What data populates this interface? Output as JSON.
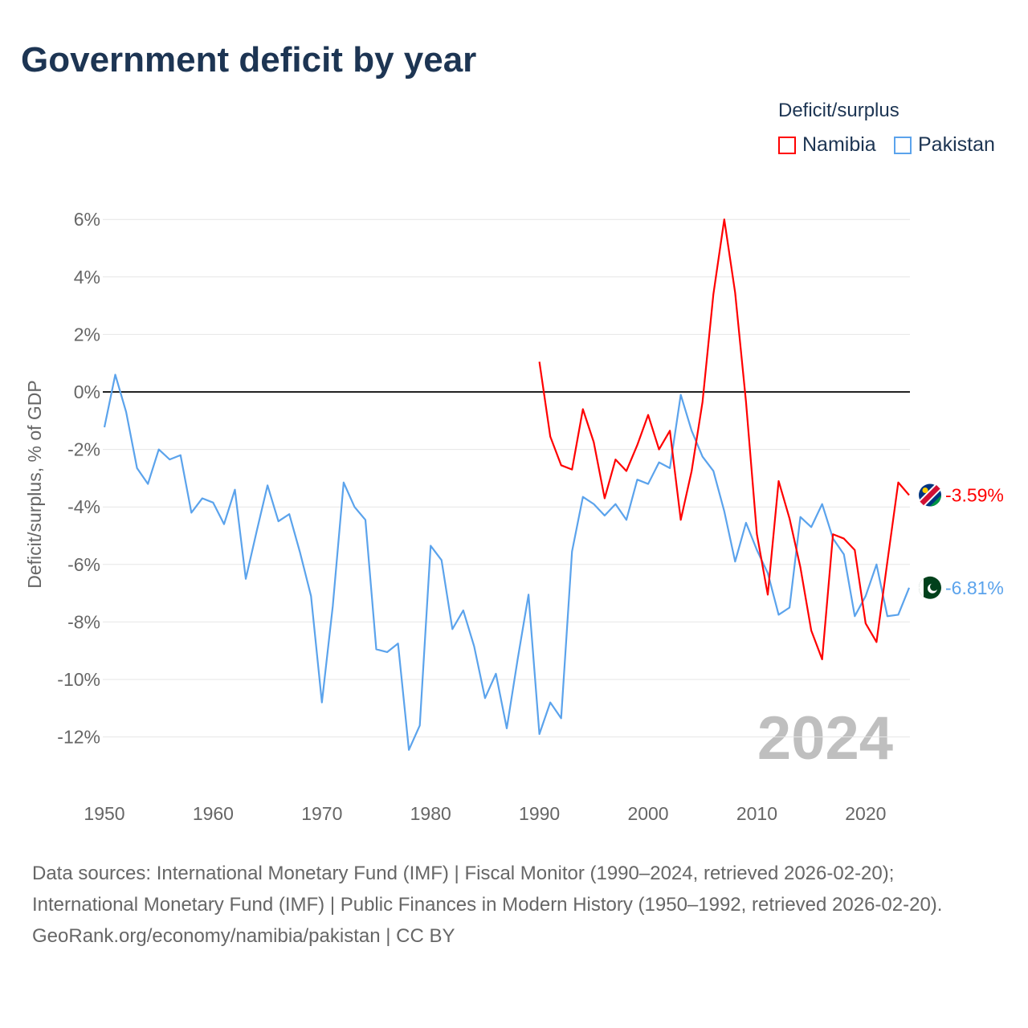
{
  "chart_data": {
    "type": "line",
    "title": "Government deficit by year",
    "xlabel": "",
    "ylabel": "Deficit/surplus, % of GDP",
    "xlim": [
      1950,
      2024
    ],
    "ylim": [
      -12,
      6
    ],
    "x_ticks": [
      "1950",
      "1960",
      "1970",
      "1980",
      "1990",
      "2000",
      "2010",
      "2020"
    ],
    "y_ticks": [
      "6%",
      "4%",
      "2%",
      "0%",
      "-2%",
      "-4%",
      "-6%",
      "-8%",
      "-10%",
      "-12%"
    ],
    "grid": true,
    "legend_title": "Deficit/surplus",
    "legend_position": "top-right",
    "year_annotation": "2024",
    "series": [
      {
        "name": "Namibia",
        "color": "#ff0000",
        "end_label": "-3.59%",
        "start_year": 1990,
        "values": [
          1.05,
          -1.55,
          -2.55,
          -2.7,
          -0.6,
          -1.75,
          -3.7,
          -2.35,
          -2.75,
          -1.85,
          -0.8,
          -2.0,
          -1.35,
          -4.45,
          -2.75,
          -0.35,
          3.4,
          6.0,
          3.45,
          -0.35,
          -4.95,
          -7.05,
          -3.1,
          -4.4,
          -6.1,
          -8.3,
          -9.3,
          -4.95,
          -5.1,
          -5.5,
          -8.05,
          -8.7,
          -5.9,
          -3.15,
          -3.59
        ]
      },
      {
        "name": "Pakistan",
        "color": "#5ba3ec",
        "end_label": "-6.81%",
        "start_year": 1950,
        "values": [
          -1.23,
          0.6,
          -0.7,
          -2.65,
          -3.2,
          -2.0,
          -2.35,
          -2.2,
          -4.2,
          -3.7,
          -3.85,
          -4.6,
          -3.4,
          -6.5,
          -4.85,
          -3.25,
          -4.5,
          -4.25,
          -5.6,
          -7.1,
          -10.8,
          -7.45,
          -3.15,
          -4.0,
          -4.45,
          -8.95,
          -9.05,
          -8.75,
          -12.45,
          -11.6,
          -5.35,
          -5.85,
          -8.25,
          -7.6,
          -8.85,
          -10.65,
          -9.8,
          -11.7,
          -9.3,
          -7.05,
          -11.9,
          -10.8,
          -11.35,
          -5.55,
          -3.65,
          -3.9,
          -4.3,
          -3.9,
          -4.45,
          -3.05,
          -3.2,
          -2.45,
          -2.65,
          -0.1,
          -1.35,
          -2.25,
          -2.75,
          -4.15,
          -5.9,
          -4.55,
          -5.5,
          -6.3,
          -7.75,
          -7.5,
          -4.35,
          -4.7,
          -3.9,
          -5.1,
          -5.65,
          -7.8,
          -7.1,
          -6.0,
          -7.8,
          -7.75,
          -6.81
        ]
      }
    ]
  },
  "footer": {
    "sources": "Data sources: International Monetary Fund (IMF) | Fiscal Monitor (1990–2024, retrieved 2026-02-20); International Monetary Fund (IMF) | Public Finances in Modern History (1950–1992, retrieved 2026-02-20).",
    "credit": "GeoRank.org/economy/namibia/pakistan | CC BY"
  }
}
